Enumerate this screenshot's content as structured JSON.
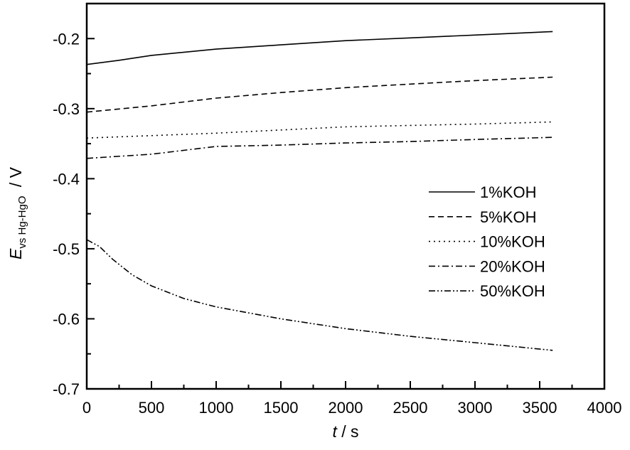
{
  "chart_data": {
    "type": "line",
    "title": "",
    "xlabel": {
      "var": "t",
      "unit": " / s"
    },
    "ylabel": {
      "var": "E",
      "sub": "vs Hg-HgO",
      "unit": " / V"
    },
    "xlim": [
      0,
      4000
    ],
    "ylim": [
      -0.7,
      -0.15
    ],
    "xticks": [
      0,
      500,
      1000,
      1500,
      2000,
      2500,
      3000,
      3500,
      4000
    ],
    "xtick_labels": [
      "0",
      "500",
      "1000",
      "1500",
      "2000",
      "2500",
      "3000",
      "3500",
      "4000"
    ],
    "yticks": [
      -0.7,
      -0.6,
      -0.5,
      -0.4,
      -0.3,
      -0.2
    ],
    "ytick_labels": [
      "-0.7",
      "-0.6",
      "-0.5",
      "-0.4",
      "-0.3",
      "-0.2"
    ],
    "grid": false,
    "legend_position": "center-right",
    "series": [
      {
        "name": "1%KOH",
        "style": "solid",
        "x": [
          0,
          250,
          500,
          1000,
          1500,
          2000,
          2500,
          3000,
          3600
        ],
        "y": [
          -0.237,
          -0.231,
          -0.224,
          -0.215,
          -0.209,
          -0.203,
          -0.199,
          -0.195,
          -0.19
        ]
      },
      {
        "name": "5%KOH",
        "style": "dash",
        "x": [
          0,
          500,
          1000,
          1500,
          2000,
          2500,
          3000,
          3600
        ],
        "y": [
          -0.305,
          -0.296,
          -0.285,
          -0.277,
          -0.27,
          -0.265,
          -0.26,
          -0.255
        ]
      },
      {
        "name": "10%KOH",
        "style": "dot",
        "x": [
          0,
          1000,
          2000,
          3000,
          3600
        ],
        "y": [
          -0.342,
          -0.335,
          -0.326,
          -0.322,
          -0.319
        ]
      },
      {
        "name": "20%KOH",
        "style": "dashdot",
        "x": [
          0,
          500,
          1000,
          1500,
          2000,
          2500,
          3000,
          3600
        ],
        "y": [
          -0.371,
          -0.365,
          -0.354,
          -0.352,
          -0.349,
          -0.347,
          -0.344,
          -0.341
        ]
      },
      {
        "name": "50%KOH",
        "style": "dashdotdot",
        "x": [
          0,
          100,
          200,
          350,
          500,
          750,
          1000,
          1500,
          2000,
          2500,
          3000,
          3600
        ],
        "y": [
          -0.487,
          -0.497,
          -0.515,
          -0.537,
          -0.553,
          -0.571,
          -0.583,
          -0.6,
          -0.614,
          -0.625,
          -0.634,
          -0.645
        ]
      }
    ]
  }
}
